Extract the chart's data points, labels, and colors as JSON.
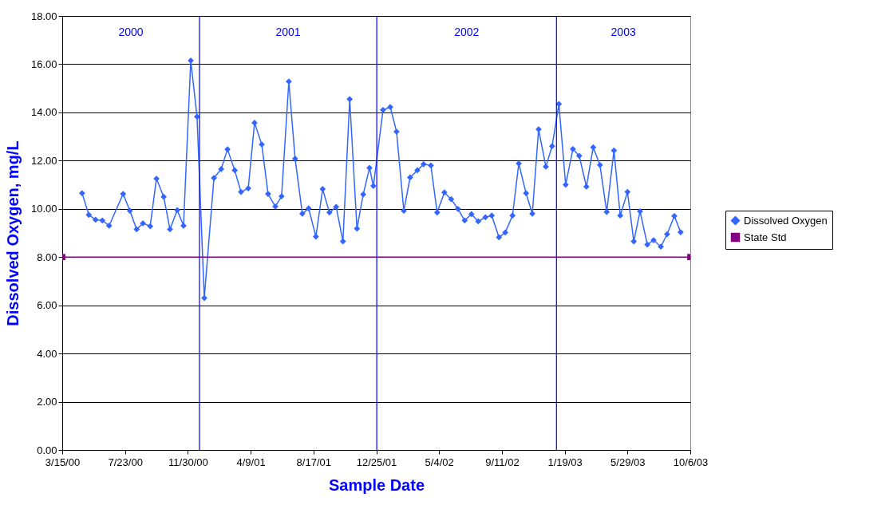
{
  "chart_data": {
    "type": "line",
    "xlabel": "Sample Date",
    "ylabel": "Dissolved Oxygen, mg/L",
    "xlim": [
      "2000-03-15",
      "2003-10-06"
    ],
    "xticks": [
      {
        "value": "2000-03-15",
        "label": "3/15/00"
      },
      {
        "value": "2000-07-23",
        "label": "7/23/00"
      },
      {
        "value": "2000-11-30",
        "label": "11/30/00"
      },
      {
        "value": "2001-04-09",
        "label": "4/9/01"
      },
      {
        "value": "2001-08-17",
        "label": "8/17/01"
      },
      {
        "value": "2001-12-25",
        "label": "12/25/01"
      },
      {
        "value": "2002-05-04",
        "label": "5/4/02"
      },
      {
        "value": "2002-09-11",
        "label": "9/11/02"
      },
      {
        "value": "2003-01-19",
        "label": "1/19/03"
      },
      {
        "value": "2003-05-29",
        "label": "5/29/03"
      },
      {
        "value": "2003-10-06",
        "label": "10/6/03"
      }
    ],
    "ylim": [
      0,
      18
    ],
    "yticks": [
      {
        "value": 0,
        "label": "0.00"
      },
      {
        "value": 2,
        "label": "2.00"
      },
      {
        "value": 4,
        "label": "4.00"
      },
      {
        "value": 6,
        "label": "6.00"
      },
      {
        "value": 8,
        "label": "8.00"
      },
      {
        "value": 10,
        "label": "10.00"
      },
      {
        "value": 12,
        "label": "12.00"
      },
      {
        "value": 14,
        "label": "14.00"
      },
      {
        "value": 16,
        "label": "16.00"
      },
      {
        "value": 18,
        "label": "18.00"
      }
    ],
    "grid": "y",
    "legend": "right",
    "series": [
      {
        "name": "Dissolved Oxygen",
        "color": "#3366ff",
        "marker": "diamond",
        "x": [
          "2000-04-25",
          "2000-05-09",
          "2000-05-23",
          "2000-06-06",
          "2000-06-20",
          "2000-07-19",
          "2000-08-02",
          "2000-08-16",
          "2000-08-29",
          "2000-09-13",
          "2000-09-26",
          "2000-10-11",
          "2000-10-24",
          "2000-11-08",
          "2000-11-21",
          "2000-12-06",
          "2000-12-19",
          "2001-01-03",
          "2001-01-23",
          "2001-02-07",
          "2001-02-20",
          "2001-03-07",
          "2001-03-20",
          "2001-04-04",
          "2001-04-17",
          "2001-05-02",
          "2001-05-15",
          "2001-05-30",
          "2001-06-12",
          "2001-06-27",
          "2001-07-10",
          "2001-07-25",
          "2001-08-07",
          "2001-08-22",
          "2001-09-05",
          "2001-09-19",
          "2001-10-03",
          "2001-10-17",
          "2001-10-31",
          "2001-11-15",
          "2001-11-28",
          "2001-12-11",
          "2001-12-19",
          "2002-01-08",
          "2002-01-23",
          "2002-02-05",
          "2002-02-20",
          "2002-03-05",
          "2002-03-20",
          "2002-04-02",
          "2002-04-17",
          "2002-04-30",
          "2002-05-15",
          "2002-05-29",
          "2002-06-12",
          "2002-06-26",
          "2002-07-10",
          "2002-07-24",
          "2002-08-08",
          "2002-08-21",
          "2002-09-05",
          "2002-09-18",
          "2002-10-03",
          "2002-10-16",
          "2002-10-31",
          "2002-11-13",
          "2002-11-26",
          "2002-12-11",
          "2002-12-24",
          "2003-01-07",
          "2003-01-21",
          "2003-02-05",
          "2003-02-18",
          "2003-03-05",
          "2003-03-19",
          "2003-04-02",
          "2003-04-16",
          "2003-05-01",
          "2003-05-14",
          "2003-05-29",
          "2003-06-11",
          "2003-06-24",
          "2003-07-09",
          "2003-07-22",
          "2003-08-06",
          "2003-08-19",
          "2003-09-03",
          "2003-09-16"
        ],
        "values": [
          10.65,
          9.75,
          9.55,
          9.52,
          9.3,
          10.62,
          9.92,
          9.15,
          9.4,
          9.28,
          11.25,
          10.5,
          9.15,
          9.95,
          9.3,
          16.15,
          13.82,
          6.3,
          11.28,
          11.65,
          12.47,
          11.6,
          10.7,
          10.85,
          13.57,
          12.67,
          10.62,
          10.1,
          10.52,
          15.28,
          12.08,
          9.8,
          10.02,
          8.85,
          10.82,
          9.85,
          10.08,
          8.65,
          14.55,
          9.18,
          10.6,
          11.7,
          10.95,
          14.1,
          14.22,
          13.2,
          9.92,
          11.3,
          11.6,
          11.85,
          11.8,
          9.85,
          10.68,
          10.4,
          10.0,
          9.52,
          9.78,
          9.48,
          9.65,
          9.72,
          8.82,
          9.02,
          9.72,
          11.88,
          10.65,
          9.8,
          13.3,
          11.75,
          12.6,
          14.35,
          11.0,
          12.48,
          12.2,
          10.92,
          12.55,
          11.82,
          9.87,
          12.42,
          9.72,
          10.7,
          8.65,
          9.9,
          8.52,
          8.7,
          8.43,
          8.95,
          9.7,
          9.03
        ]
      },
      {
        "name": "State Std",
        "color": "#800080",
        "marker": "square",
        "x": [
          "2000-03-15",
          "2003-10-06"
        ],
        "values": [
          8,
          8
        ]
      }
    ],
    "ref_lines": [
      {
        "axis": "x",
        "value": "2000-12-24",
        "color": "#0000ff"
      },
      {
        "axis": "x",
        "value": "2001-12-26",
        "color": "#0000ff"
      },
      {
        "axis": "x",
        "value": "2003-01-02",
        "color": "#0000ff"
      }
    ],
    "annotations": [
      "2000",
      "2001",
      "2002",
      "2003"
    ]
  }
}
